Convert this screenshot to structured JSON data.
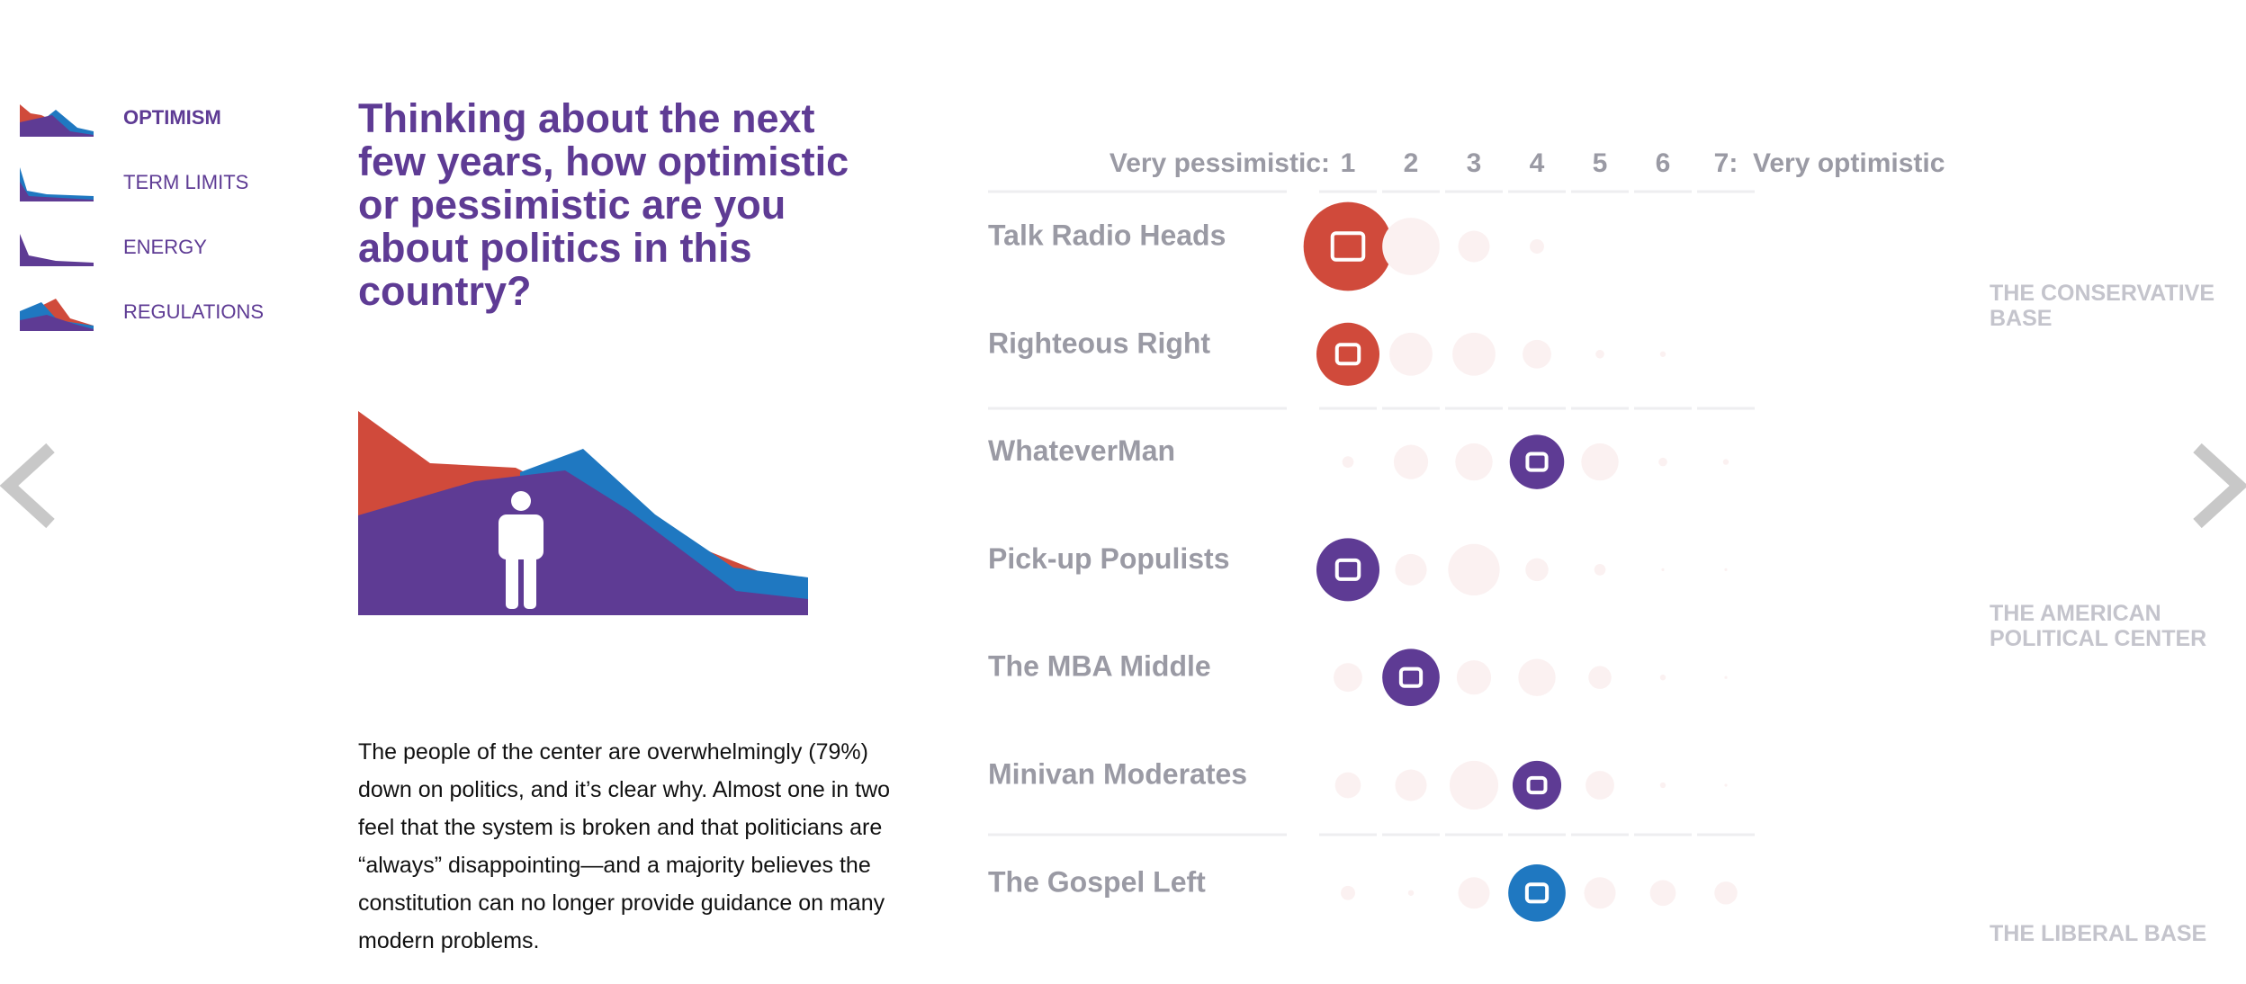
{
  "nav": {
    "items": [
      "OPTIMISM",
      "TERM LIMITS",
      "ENERGY",
      "REGULATIONS"
    ],
    "active": 0
  },
  "question": "Thinking about the next few years, how optimistic or pessimistic are you about politics in this country?",
  "body": "The people of the center are overwhelmingly (79%) down on politics, and it’s clear why. Almost one in two feel that the system is broken and that politicians are “always” disappointing—and a majority believes the constitution can no longer provide guidance on many modern problems.",
  "scale": {
    "low_label": "Very pessimistic:",
    "high_label": "Very optimistic",
    "ticks": [
      1,
      2,
      3,
      4,
      5,
      6,
      {
        "value": 7,
        "label": "7:"
      }
    ]
  },
  "groups": [
    {
      "name": "Talk Radio Heads",
      "sizes": [
        31,
        20,
        11,
        5,
        0,
        0,
        0
      ],
      "highlight": 1,
      "color": "#d04a3b"
    },
    {
      "name": "Righteous Right",
      "sizes": [
        22,
        15,
        15,
        10,
        3,
        2,
        0
      ],
      "highlight": 1,
      "color": "#d04a3b"
    },
    {
      "name": "WhateverMan",
      "sizes": [
        4,
        12,
        13,
        19,
        13,
        3,
        2
      ],
      "highlight": 4,
      "color": "#5e3b94"
    },
    {
      "name": "Pick-up Populists",
      "sizes": [
        22,
        11,
        18,
        8,
        4,
        1,
        1
      ],
      "highlight": 1,
      "color": "#5e3b94"
    },
    {
      "name": "The MBA Middle",
      "sizes": [
        10,
        20,
        12,
        13,
        8,
        2,
        1
      ],
      "highlight": 2,
      "color": "#5e3b94"
    },
    {
      "name": "Minivan Moderates",
      "sizes": [
        9,
        11,
        17,
        17,
        10,
        2,
        1
      ],
      "highlight": 4,
      "color": "#5e3b94"
    },
    {
      "name": "The Gospel Left",
      "sizes": [
        5,
        2,
        11,
        20,
        11,
        9,
        8
      ],
      "highlight": 4,
      "color": "#1f78c1"
    }
  ],
  "segments": [
    "THE CONSERVATIVE BASE",
    "THE AMERICAN POLITICAL CENTER",
    "THE LIBERAL BASE"
  ]
}
